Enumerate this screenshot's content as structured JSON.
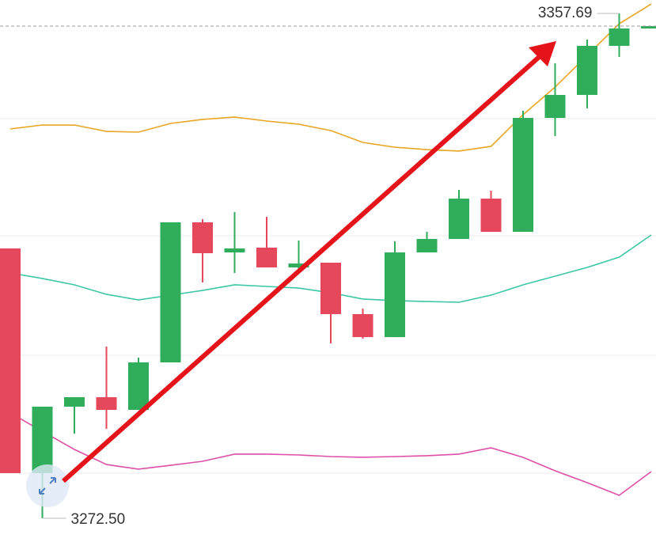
{
  "chart_data": {
    "type": "candlestick",
    "up_color": "#2fad5a",
    "down_color": "#e5485a",
    "open": [
      3318.03,
      3280.11,
      3291.33,
      3292.93,
      3290.79,
      3298.8,
      3322.44,
      3317.36,
      3318.17,
      3314.83,
      3315.63,
      3306.95,
      3303.07,
      3317.36,
      3319.63,
      3326.44,
      3320.84,
      3340.06,
      3343.94,
      3352.22,
      3355.15
    ],
    "high": [
      3318.03,
      3291.33,
      3292.93,
      3301.47,
      3299.6,
      3322.44,
      3322.97,
      3324.17,
      3323.37,
      3319.37,
      3315.63,
      3307.89,
      3319.23,
      3320.84,
      3327.91,
      3327.78,
      3341.27,
      3349.28,
      3353.28,
      3357.69,
      3355.55
    ],
    "low": [
      3280.11,
      3272.5,
      3286.79,
      3287.59,
      3290.79,
      3298.8,
      3312.29,
      3313.89,
      3314.83,
      3314.56,
      3302.01,
      3302.81,
      3303.07,
      3317.36,
      3319.63,
      3320.84,
      3320.84,
      3336.99,
      3341.67,
      3350.35,
      3355.15
    ],
    "close": [
      3280.11,
      3291.33,
      3292.93,
      3290.79,
      3298.8,
      3322.44,
      3317.23,
      3318.03,
      3314.83,
      3315.49,
      3306.95,
      3303.07,
      3317.36,
      3319.63,
      3326.44,
      3320.84,
      3340.06,
      3343.94,
      3352.22,
      3355.15,
      3355.55
    ],
    "lines": [
      {
        "color": "#e8a623",
        "values": [
          3338.2,
          3338.86,
          3338.86,
          3337.79,
          3337.66,
          3339.13,
          3339.8,
          3340.2,
          3339.53,
          3339.0,
          3337.93,
          3335.92,
          3335.12,
          3334.72,
          3334.46,
          3335.26,
          3340.6,
          3345.27,
          3350.61,
          3355.95,
          3359.29
        ]
      },
      {
        "color": "#3cc7a8",
        "values": [
          3313.89,
          3312.96,
          3311.89,
          3310.29,
          3309.35,
          3310.15,
          3310.95,
          3311.89,
          3311.62,
          3311.35,
          3310.55,
          3309.49,
          3309.22,
          3309.08,
          3308.95,
          3310.15,
          3311.89,
          3313.36,
          3314.83,
          3316.56,
          3320.3
        ]
      },
      {
        "color": "#de4fa8",
        "values": [
          3290.26,
          3287.18,
          3284.11,
          3281.57,
          3280.78,
          3281.44,
          3282.11,
          3283.32,
          3283.32,
          3283.18,
          3282.91,
          3282.78,
          3282.91,
          3283.05,
          3283.32,
          3284.39,
          3282.78,
          3280.51,
          3278.51,
          3276.37,
          3280.38
        ]
      }
    ],
    "annotations": [
      {
        "value": 3357.69,
        "label": "3357.69"
      },
      {
        "value": 3272.5,
        "label": "3272.50"
      }
    ],
    "ylim": [
      3268.49,
      3359.96
    ]
  }
}
